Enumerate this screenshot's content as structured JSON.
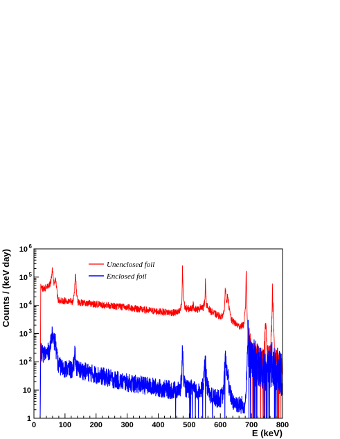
{
  "chart_data": {
    "type": "line",
    "title": "",
    "xlabel": "E (keV)",
    "ylabel": "Counts / (keV day)",
    "xlim": [
      0,
      800
    ],
    "ylim": [
      1,
      1000000
    ],
    "yscale": "log",
    "grid": false,
    "legend_position": "top-left",
    "x_ticks": [
      0,
      100,
      200,
      300,
      400,
      500,
      600,
      700,
      800
    ],
    "x_tick_labels": [
      "0",
      "100",
      "200",
      "300",
      "400",
      "500",
      "600",
      "700",
      "800"
    ],
    "y_ticks": [
      1,
      10,
      100,
      1000,
      10000,
      100000,
      1000000
    ],
    "y_tick_labels": [
      {
        "base": "1",
        "exp": ""
      },
      {
        "base": "10",
        "exp": ""
      },
      {
        "base": "10",
        "exp": "2"
      },
      {
        "base": "10",
        "exp": "3"
      },
      {
        "base": "10",
        "exp": "4"
      },
      {
        "base": "10",
        "exp": "5"
      },
      {
        "base": "10",
        "exp": "6"
      }
    ],
    "series": [
      {
        "name": "Unenclosed foil",
        "color": "#ff0000",
        "noise": 0.12,
        "points": [
          [
            20,
            1
          ],
          [
            22,
            45000
          ],
          [
            30,
            40000
          ],
          [
            40,
            42000
          ],
          [
            50,
            50000
          ],
          [
            55,
            80000
          ],
          [
            60,
            200000
          ],
          [
            64,
            60000
          ],
          [
            70,
            90000
          ],
          [
            74,
            30000
          ],
          [
            78,
            16000
          ],
          [
            90,
            14000
          ],
          [
            110,
            15000
          ],
          [
            125,
            13500
          ],
          [
            130,
            25000
          ],
          [
            134,
            130000
          ],
          [
            138,
            20000
          ],
          [
            142,
            13000
          ],
          [
            160,
            12000
          ],
          [
            200,
            11000
          ],
          [
            250,
            9500
          ],
          [
            300,
            8500
          ],
          [
            350,
            7000
          ],
          [
            400,
            6000
          ],
          [
            450,
            5500
          ],
          [
            470,
            6000
          ],
          [
            476,
            12000
          ],
          [
            478,
            200000
          ],
          [
            481,
            20000
          ],
          [
            486,
            8000
          ],
          [
            500,
            7500
          ],
          [
            510,
            8000
          ],
          [
            512,
            11000
          ],
          [
            515,
            8000
          ],
          [
            530,
            7000
          ],
          [
            538,
            9500
          ],
          [
            545,
            8000
          ],
          [
            550,
            15000
          ],
          [
            552,
            70000
          ],
          [
            555,
            10000
          ],
          [
            570,
            6000
          ],
          [
            590,
            4500
          ],
          [
            605,
            4000
          ],
          [
            612,
            6000
          ],
          [
            616,
            40000
          ],
          [
            620,
            10000
          ],
          [
            624,
            25000
          ],
          [
            628,
            8000
          ],
          [
            635,
            3000
          ],
          [
            660,
            1800
          ],
          [
            675,
            2000
          ],
          [
            681,
            8000
          ],
          [
            683,
            200000
          ],
          [
            686,
            5000
          ],
          [
            689,
            1000
          ],
          [
            695,
            700
          ],
          [
            700,
            250
          ],
          [
            720,
            200
          ],
          [
            740,
            150
          ],
          [
            746,
            2500
          ],
          [
            750,
            300
          ],
          [
            760,
            120
          ],
          [
            765,
            2000
          ],
          [
            768,
            30000
          ],
          [
            771,
            2000
          ],
          [
            775,
            200
          ],
          [
            790,
            100
          ],
          [
            800,
            60
          ]
        ]
      },
      {
        "name": "Enclosed foil",
        "color": "#0000ff",
        "noise": 0.32,
        "points": [
          [
            20,
            1
          ],
          [
            22,
            220
          ],
          [
            30,
            200
          ],
          [
            40,
            200
          ],
          [
            50,
            250
          ],
          [
            55,
            500
          ],
          [
            60,
            1500
          ],
          [
            64,
            400
          ],
          [
            68,
            700
          ],
          [
            72,
            200
          ],
          [
            78,
            80
          ],
          [
            90,
            60
          ],
          [
            110,
            55
          ],
          [
            125,
            50
          ],
          [
            130,
            100
          ],
          [
            132,
            300
          ],
          [
            136,
            60
          ],
          [
            150,
            50
          ],
          [
            200,
            35
          ],
          [
            250,
            25
          ],
          [
            300,
            18
          ],
          [
            350,
            15
          ],
          [
            400,
            12
          ],
          [
            440,
            10
          ],
          [
            450,
            10
          ],
          [
            470,
            10
          ],
          [
            476,
            30
          ],
          [
            478,
            400
          ],
          [
            481,
            40
          ],
          [
            486,
            12
          ],
          [
            500,
            10
          ],
          [
            510,
            12
          ],
          [
            515,
            10
          ],
          [
            530,
            8
          ],
          [
            545,
            15
          ],
          [
            552,
            150
          ],
          [
            556,
            15
          ],
          [
            570,
            6
          ],
          [
            590,
            5
          ],
          [
            600,
            5
          ],
          [
            610,
            8
          ],
          [
            616,
            180
          ],
          [
            620,
            40
          ],
          [
            624,
            50
          ],
          [
            628,
            10
          ],
          [
            640,
            4
          ],
          [
            660,
            3
          ],
          [
            680,
            3
          ],
          [
            686,
            80
          ],
          [
            689,
            700
          ],
          [
            692,
            200
          ],
          [
            700,
            100
          ],
          [
            720,
            80
          ],
          [
            740,
            60
          ],
          [
            760,
            80
          ],
          [
            780,
            60
          ],
          [
            790,
            40
          ],
          [
            800,
            30
          ]
        ]
      }
    ]
  }
}
